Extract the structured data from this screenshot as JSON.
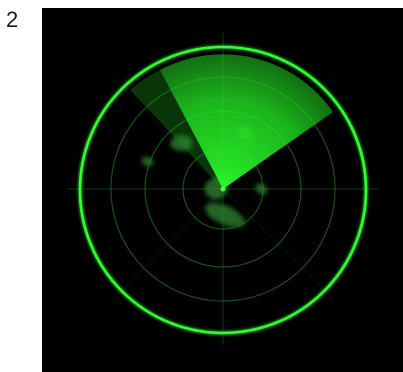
{
  "figure": {
    "number": "2"
  },
  "radar": {
    "colors": {
      "background": "#000000",
      "ring": "#33ff33",
      "sweep": "#22ff22",
      "grid": "#1f6b1f",
      "blip": "#2e7d2e"
    },
    "sweep_direction_deg": 35,
    "sweep_width_deg": 120,
    "inner_rings": 3
  }
}
